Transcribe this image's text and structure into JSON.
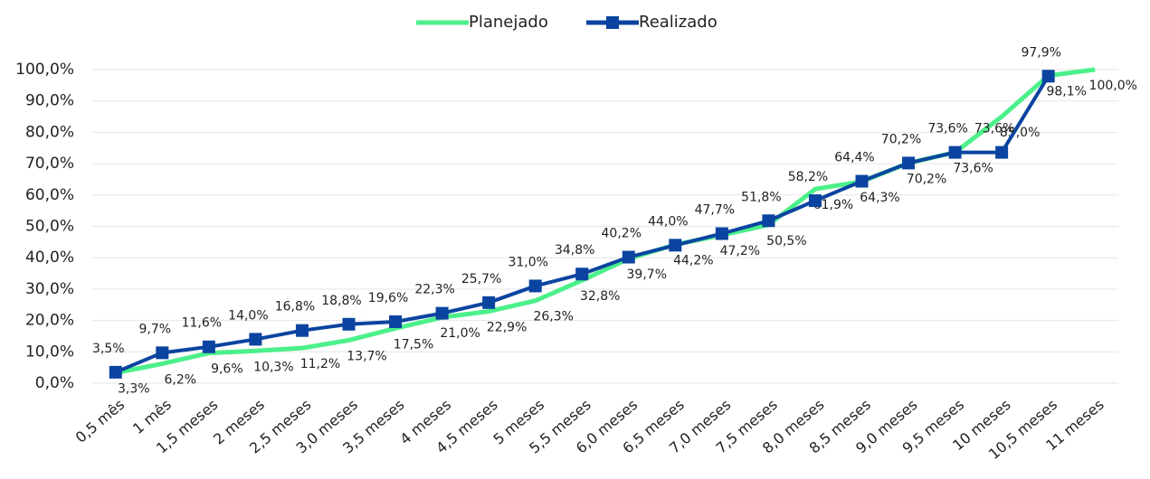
{
  "chart_data": {
    "type": "line",
    "categories": [
      "0,5 mês",
      "1 mês",
      "1,5 meses",
      "2 meses",
      "2,5 meses",
      "3,0 meses",
      "3,5 meses",
      "4 meses",
      "4,5 meses",
      "5 meses",
      "5,5 meses",
      "6,0 meses",
      "6,5 meses",
      "7,0 meses",
      "7,5 meses",
      "8,0 meses",
      "8,5 meses",
      "9,0 meses",
      "9,5 meses",
      "10 meses",
      "10,5 meses",
      "11 meses"
    ],
    "series": [
      {
        "name": "Planejado",
        "color": "#4cf08a",
        "values": [
          3.3,
          6.2,
          9.6,
          10.3,
          11.2,
          13.7,
          17.5,
          21.0,
          22.9,
          26.3,
          32.8,
          39.7,
          44.2,
          47.2,
          50.5,
          61.9,
          64.3,
          70.2,
          73.6,
          85.0,
          98.1,
          100.0
        ],
        "value_labels": [
          "3,3%",
          "6,2%",
          "9,6%",
          "10,3%",
          "11,2%",
          "13,7%",
          "17,5%",
          "21,0%",
          "22,9%",
          "26,3%",
          "32,8%",
          "39,7%",
          "44,2%",
          "47,2%",
          "50,5%",
          "61,9%",
          "64,3%",
          "70,2%",
          "73,6%",
          "85,0%",
          "98,1%",
          "100,0%"
        ]
      },
      {
        "name": "Realizado",
        "color": "#0b44a0",
        "values": [
          3.5,
          9.7,
          11.6,
          14.0,
          16.8,
          18.8,
          19.6,
          22.3,
          25.7,
          31.0,
          34.8,
          40.2,
          44.0,
          47.7,
          51.8,
          58.2,
          64.4,
          70.2,
          73.6,
          73.6,
          97.9,
          null
        ],
        "value_labels": [
          "3,5%",
          "9,7%",
          "11,6%",
          "14,0%",
          "16,8%",
          "18,8%",
          "19,6%",
          "22,3%",
          "25,7%",
          "31,0%",
          "34,8%",
          "40,2%",
          "44,0%",
          "47,7%",
          "51,8%",
          "58,2%",
          "64,4%",
          "70,2%",
          "73,6%",
          "73,6%",
          "97,9%",
          null
        ]
      }
    ],
    "ylim": [
      0,
      100
    ],
    "yticks": [
      {
        "value": 0,
        "label": "0,0%"
      },
      {
        "value": 10,
        "label": "10,0%"
      },
      {
        "value": 20,
        "label": "20,0%"
      },
      {
        "value": 30,
        "label": "30,0%"
      },
      {
        "value": 40,
        "label": "40,0%"
      },
      {
        "value": 50,
        "label": "50,0%"
      },
      {
        "value": 60,
        "label": "60,0%"
      },
      {
        "value": 70,
        "label": "70,0%"
      },
      {
        "value": 80,
        "label": "80,0%"
      },
      {
        "value": 90,
        "label": "90,0%"
      },
      {
        "value": 100,
        "label": "100,0%"
      }
    ],
    "grid": true,
    "legend": "top"
  }
}
